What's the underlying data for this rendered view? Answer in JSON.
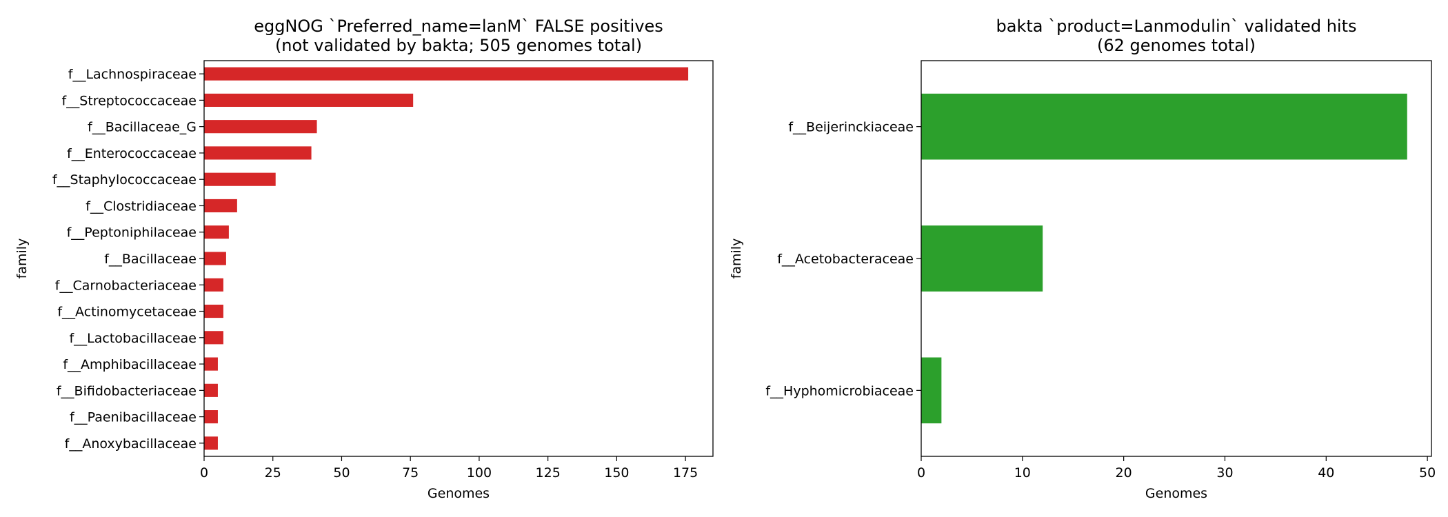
{
  "chart_data": [
    {
      "type": "bar",
      "orientation": "horizontal",
      "title": [
        "eggNOG `Preferred_name=lanM` FALSE positives",
        "(not validated by bakta; 505 genomes total)"
      ],
      "xlabel": "Genomes",
      "ylabel": "family",
      "xlim": [
        0,
        185
      ],
      "xticks": [
        0,
        25,
        50,
        75,
        100,
        125,
        150,
        175
      ],
      "color": "#d62728",
      "categories": [
        "f__Lachnospiraceae",
        "f__Streptococcaceae",
        "f__Bacillaceae_G",
        "f__Enterococcaceae",
        "f__Staphylococcaceae",
        "f__Clostridiaceae",
        "f__Peptoniphilaceae",
        "f__Bacillaceae",
        "f__Carnobacteriaceae",
        "f__Actinomycetaceae",
        "f__Lactobacillaceae",
        "f__Amphibacillaceae",
        "f__Bifidobacteriaceae",
        "f__Paenibacillaceae",
        "f__Anoxybacillaceae"
      ],
      "values": [
        176,
        76,
        41,
        39,
        26,
        12,
        9,
        8,
        7,
        7,
        7,
        5,
        5,
        5,
        5
      ]
    },
    {
      "type": "bar",
      "orientation": "horizontal",
      "title": [
        "bakta `product=Lanmodulin` validated hits",
        "(62 genomes total)"
      ],
      "xlabel": "Genomes",
      "ylabel": "family",
      "xlim": [
        0,
        50.4
      ],
      "xticks": [
        0,
        10,
        20,
        30,
        40,
        50
      ],
      "color": "#2ca02c",
      "categories": [
        "f__Beijerinckiaceae",
        "f__Acetobacteraceae",
        "f__Hyphomicrobiaceae"
      ],
      "values": [
        48,
        12,
        2
      ]
    }
  ]
}
